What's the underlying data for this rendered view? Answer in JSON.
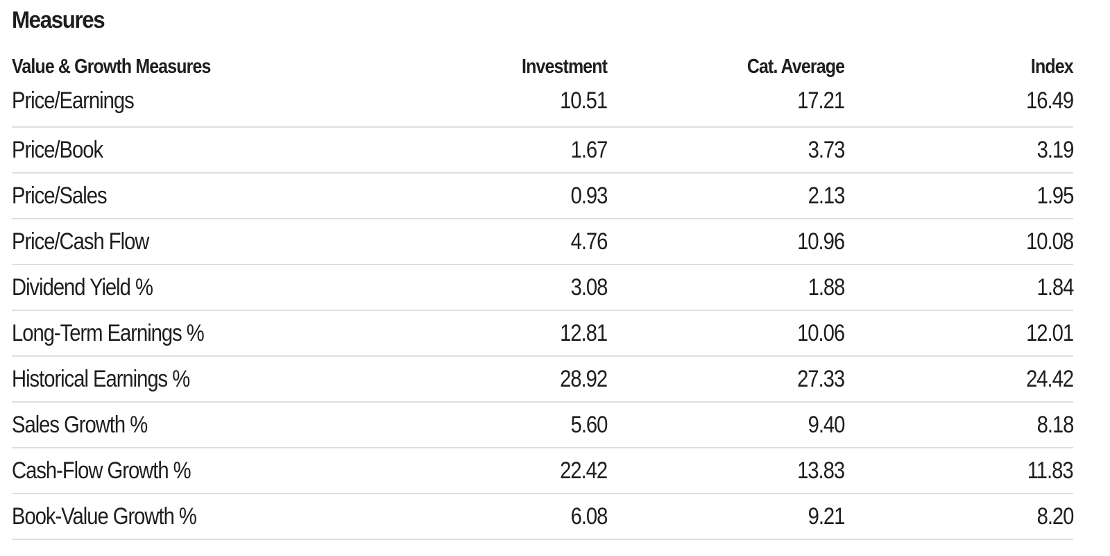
{
  "section": {
    "title": "Measures"
  },
  "table": {
    "headers": [
      "Value & Growth Measures",
      "Investment",
      "Cat. Average",
      "Index"
    ],
    "rows": [
      [
        "Price/Earnings",
        "10.51",
        "17.21",
        "16.49"
      ],
      [
        "Price/Book",
        "1.67",
        "3.73",
        "3.19"
      ],
      [
        "Price/Sales",
        "0.93",
        "2.13",
        "1.95"
      ],
      [
        "Price/Cash Flow",
        "4.76",
        "10.96",
        "10.08"
      ],
      [
        "Dividend Yield %",
        "3.08",
        "1.88",
        "1.84"
      ],
      [
        "Long-Term Earnings %",
        "12.81",
        "10.06",
        "12.01"
      ],
      [
        "Historical Earnings %",
        "28.92",
        "27.33",
        "24.42"
      ],
      [
        "Sales Growth %",
        "5.60",
        "9.40",
        "8.18"
      ],
      [
        "Cash-Flow Growth %",
        "22.42",
        "13.83",
        "11.83"
      ],
      [
        "Book-Value Growth %",
        "6.08",
        "9.21",
        "8.20"
      ]
    ]
  },
  "colors": {
    "text": "#1e1e1e",
    "row_divider": "#dedede",
    "background": "#ffffff"
  }
}
